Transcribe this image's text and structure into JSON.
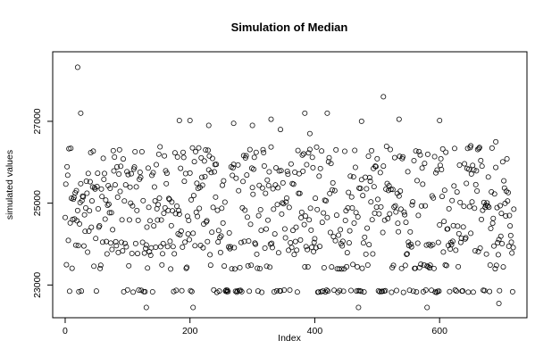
{
  "chart_data": {
    "type": "scatter",
    "title": "Simulation of Median",
    "xlabel": "Index",
    "ylabel": "simulated values",
    "xlim": [
      -20,
      740
    ],
    "ylim": [
      22200,
      28700
    ],
    "x_ticks": [
      0,
      200,
      400,
      600
    ],
    "x_tick_labels": [
      "0",
      "200",
      "400",
      "600"
    ],
    "y_ticks": [
      23000,
      25000,
      27000
    ],
    "y_tick_labels": [
      "23000",
      "25000",
      "27000"
    ],
    "grid": false,
    "legend": "none",
    "marker": "open-circle",
    "n_points": 720,
    "band_levels": [
      22850,
      23450,
      23900,
      24200,
      24600,
      25000,
      25400,
      25800,
      26200
    ],
    "notable_points": [
      {
        "x": 20,
        "y": 28320
      },
      {
        "x": 25,
        "y": 27200
      },
      {
        "x": 183,
        "y": 27020
      },
      {
        "x": 200,
        "y": 27020
      },
      {
        "x": 230,
        "y": 26900
      },
      {
        "x": 270,
        "y": 26950
      },
      {
        "x": 300,
        "y": 26900
      },
      {
        "x": 330,
        "y": 27050
      },
      {
        "x": 345,
        "y": 26800
      },
      {
        "x": 384,
        "y": 27200
      },
      {
        "x": 392,
        "y": 26700
      },
      {
        "x": 420,
        "y": 27200
      },
      {
        "x": 475,
        "y": 27000
      },
      {
        "x": 510,
        "y": 27600
      },
      {
        "x": 535,
        "y": 27050
      },
      {
        "x": 600,
        "y": 27020
      },
      {
        "x": 650,
        "y": 26400
      },
      {
        "x": 690,
        "y": 26500
      },
      {
        "x": 130,
        "y": 22450
      },
      {
        "x": 205,
        "y": 22450
      },
      {
        "x": 470,
        "y": 22450
      },
      {
        "x": 580,
        "y": 22450
      },
      {
        "x": 695,
        "y": 22550
      }
    ]
  }
}
